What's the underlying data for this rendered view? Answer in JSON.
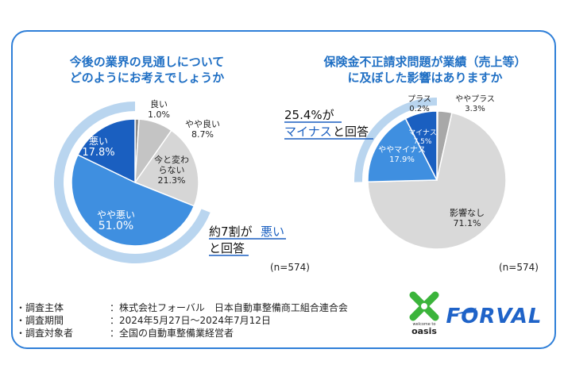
{
  "colors": {
    "frame": "#2f7fd8",
    "title": "#1f6fc4",
    "dark_blue": "#1a5fc0",
    "mid_blue": "#3f8fe0",
    "light_blue_ring": "#b9d5ef",
    "gray": "#bdbdbd",
    "light_gray": "#d4d4d4",
    "dark_gray": "#8a8a8a",
    "forval_blue": "#1f63c8",
    "oasis_green": "#3bb43b"
  },
  "left_chart": {
    "title_line1": "今後の業界の見通しについて",
    "title_line2": "どのようにお考えでしょうか",
    "callout_line1": "約7割が",
    "callout_emph": "悪い",
    "callout_line2": "と回答",
    "n_label": "(n=574)"
  },
  "right_chart": {
    "title_line1": "保険金不正請求問題が業績（売上等）",
    "title_line2": "に及ぼした影響はありますか",
    "callout_line1": "25.4%が",
    "callout_emph": "マイナス",
    "callout_line2": "と回答",
    "n_label": "(n=574)"
  },
  "survey_info": [
    {
      "label": "・調査主体",
      "value": "：株式会社フォーバル　日本自動車整備商工組合連合会"
    },
    {
      "label": "・調査期間",
      "value": "：2024年5月27日～2024年7月12日"
    },
    {
      "label": "・調査対象者",
      "value": "：全国の自動車整備業経営者"
    }
  ],
  "logos": {
    "oasis_small": "welcome to",
    "oasis_text": "oasis",
    "forval_text": "FORVAL"
  },
  "chart_data": [
    {
      "type": "pie",
      "title": "今後の業界の見通しについてどのようにお考えでしょうか",
      "start": "top, clockwise",
      "slices": [
        {
          "label": "良い",
          "value": 1.0,
          "display": "1.0%",
          "color": "#8a8a8a"
        },
        {
          "label": "やや良い",
          "value": 8.7,
          "display": "8.7%",
          "color": "#c4c4c4"
        },
        {
          "label": "今と変わらない",
          "label_lines": [
            "今と変わ",
            "らない"
          ],
          "value": 21.3,
          "display": "21.3%",
          "color": "#d6d6d6"
        },
        {
          "label": "やや悪い",
          "value": 51.0,
          "display": "51.0%",
          "color": "#3f8fe0"
        },
        {
          "label": "悪い",
          "value": 17.8,
          "display": "17.8%",
          "color": "#1a5fc0"
        }
      ],
      "n": 574
    },
    {
      "type": "pie",
      "title": "保険金不正請求問題が業績（売上等）に及ぼした影響はありますか",
      "start": "top, clockwise",
      "slices": [
        {
          "label": "プラス",
          "value": 0.2,
          "display": "0.2%",
          "color": "#8a8a8a"
        },
        {
          "label": "ややプラス",
          "value": 3.3,
          "display": "3.3%",
          "color": "#a8a8a8"
        },
        {
          "label": "影響なし",
          "value": 71.1,
          "display": "71.1%",
          "color": "#d9d9d9"
        },
        {
          "label": "ややマイナス",
          "value": 17.9,
          "display": "17.9%",
          "color": "#3f8fe0"
        },
        {
          "label": "マイナス",
          "value": 7.5,
          "display": "7.5%",
          "color": "#1a5fc0"
        }
      ],
      "n": 574
    }
  ]
}
